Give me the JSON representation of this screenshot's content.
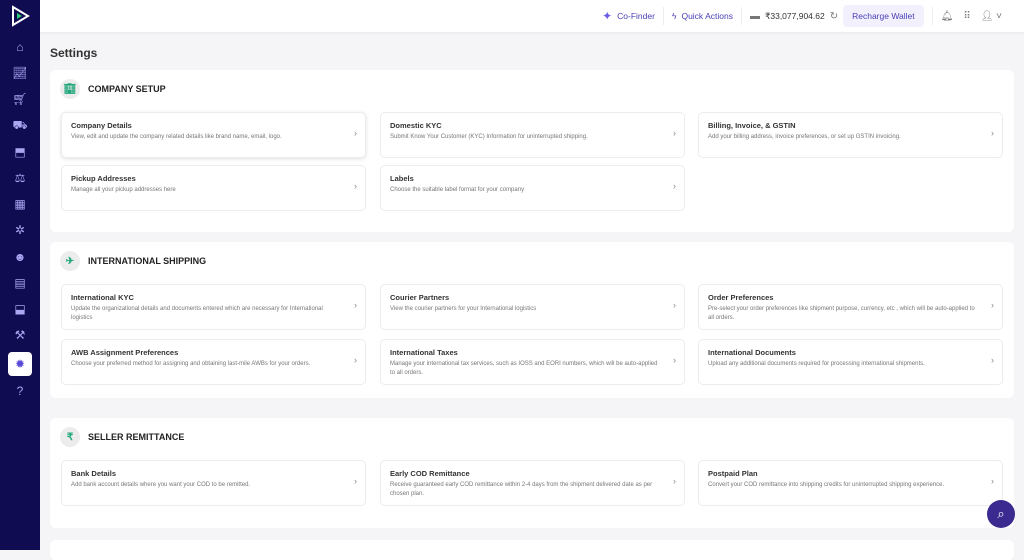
{
  "header": {
    "co_finder": "Co-Finder",
    "quick_actions": "Quick Actions",
    "balance": "₹33,077,904.62",
    "recharge": "Recharge Wallet"
  },
  "page_title": "Settings",
  "sidebar": {
    "items": [
      "home-icon",
      "analytics-icon",
      "cart-icon",
      "shipments-icon",
      "returns-icon",
      "weight-icon",
      "apps-icon",
      "integrations-icon",
      "buyer-icon",
      "billing-icon",
      "tools-icon",
      "tools2-icon",
      "settings-icon",
      "help-icon"
    ],
    "active": "settings-icon"
  },
  "sections": [
    {
      "title": "COMPANY SETUP",
      "cards": [
        {
          "title": "Company Details",
          "desc": "View, edit and update the company related details like brand name, email, logo."
        },
        {
          "title": "Domestic KYC",
          "desc": "Submit Know Your Customer (KYC) Information for uninterrupted shipping."
        },
        {
          "title": "Billing, Invoice, & GSTIN",
          "desc": "Add your billing address, invoice preferences, or set up GSTIN invoicing."
        },
        {
          "title": "Pickup Addresses",
          "desc": "Manage all your pickup addresses here"
        },
        {
          "title": "Labels",
          "desc": "Choose the suitable label format for your company"
        }
      ]
    },
    {
      "title": "INTERNATIONAL SHIPPING",
      "cards": [
        {
          "title": "International KYC",
          "desc": "Update the organizational details and documents entered which are necessary for International logistics"
        },
        {
          "title": "Courier Partners",
          "desc": "View the courier partners for your International logistics"
        },
        {
          "title": "Order Preferences",
          "desc": "Pre-select your order preferences like shipment purpose, currency, etc , which will be auto-applied to all orders."
        },
        {
          "title": "AWB Assignment Preferences",
          "desc": "Choose your preferred method for assigning and obtaining last-mile AWBs for your orders."
        },
        {
          "title": "International Taxes",
          "desc": "Manage your international tax services, such as IOSS and EORI numbers, which will be auto-applied to all orders."
        },
        {
          "title": "International Documents",
          "desc": "Upload any additional documents required for processing international shipments."
        }
      ]
    },
    {
      "title": "SELLER REMITTANCE",
      "cards": [
        {
          "title": "Bank Details",
          "desc": "Add bank account details where you want your COD to be remitted."
        },
        {
          "title": "Early COD Remittance",
          "desc": "Receive guaranteed early COD remittance within 2-4 days from the shipment delivered date as per chosen plan."
        },
        {
          "title": "Postpaid Plan",
          "desc": "Convert your COD remittance into shipping credits for uninterrupted shipping experience."
        }
      ]
    }
  ],
  "colors": {
    "sidebar": "#0f0c52",
    "accent": "#4a3fb8"
  }
}
